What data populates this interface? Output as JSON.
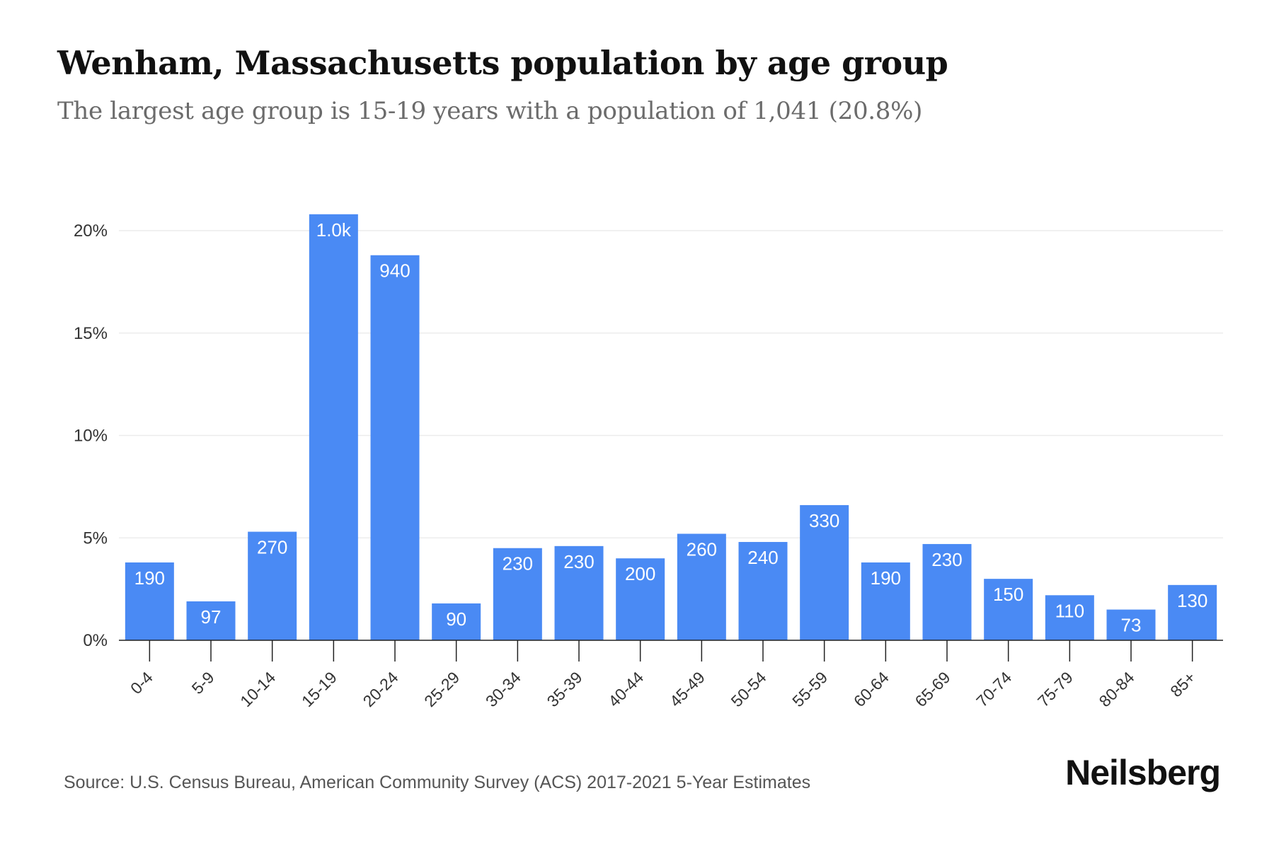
{
  "title": "Wenham, Massachusetts population by age group",
  "subtitle": "The largest age group is 15-19 years with a population of 1,041 (20.8%)",
  "source": "Source: U.S. Census Bureau, American Community Survey (ACS) 2017-2021 5-Year Estimates",
  "brand": "Neilsberg",
  "chart_data": {
    "type": "bar",
    "categories": [
      "0-4",
      "5-9",
      "10-14",
      "15-19",
      "20-24",
      "25-29",
      "30-34",
      "35-39",
      "40-44",
      "45-49",
      "50-54",
      "55-59",
      "60-64",
      "65-69",
      "70-74",
      "75-79",
      "80-84",
      "85+"
    ],
    "values": [
      3.8,
      1.9,
      5.3,
      20.8,
      18.8,
      1.8,
      4.5,
      4.6,
      4.0,
      5.2,
      4.8,
      6.6,
      3.8,
      4.7,
      3.0,
      2.2,
      1.5,
      2.7
    ],
    "data_labels": [
      "190",
      "97",
      "270",
      "1.0k",
      "940",
      "90",
      "230",
      "230",
      "200",
      "260",
      "240",
      "330",
      "190",
      "230",
      "150",
      "110",
      "73",
      "130"
    ],
    "y_ticks": [
      "0%",
      "5%",
      "10%",
      "15%",
      "20%"
    ],
    "y_tick_values": [
      0,
      5,
      10,
      15,
      20
    ],
    "ylim": [
      0,
      20.8
    ],
    "grid": true,
    "bar_color": "#4a8af4",
    "grid_color": "#ececec",
    "axis_color": "#222222"
  }
}
